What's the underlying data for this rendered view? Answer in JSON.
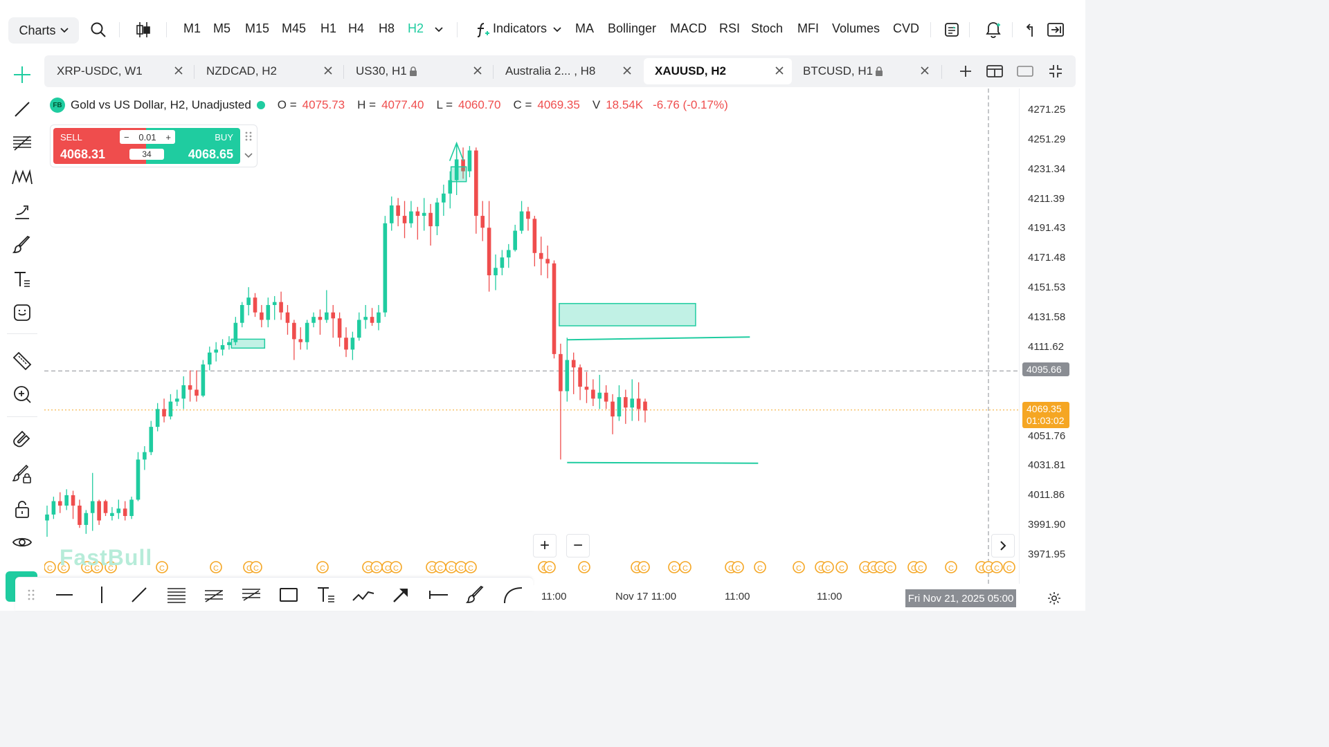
{
  "topbar": {
    "charts_label": "Charts",
    "timeframes": [
      "M1",
      "M5",
      "M15",
      "M45",
      "H1",
      "H4",
      "H8",
      "H2"
    ],
    "active_timeframe": "H2",
    "indicators_label": "Indicators",
    "indicator_shortcuts": [
      "MA",
      "Bollinger",
      "MACD",
      "RSI",
      "Stoch",
      "MFI",
      "Volumes",
      "CVD"
    ]
  },
  "tabs": [
    {
      "label": "XRP-USDC, W1",
      "locked": false,
      "active": false
    },
    {
      "label": "NZDCAD, H2",
      "locked": false,
      "active": false
    },
    {
      "label": "US30, H1",
      "locked": true,
      "active": false
    },
    {
      "label": "Australia 2... , H8",
      "locked": false,
      "active": false
    },
    {
      "label": "XAUUSD, H2",
      "locked": false,
      "active": true
    },
    {
      "label": "BTCUSD, H1",
      "locked": true,
      "active": false
    }
  ],
  "legend": {
    "badge": "FB",
    "title": "Gold vs US Dollar, H2, Unadjusted",
    "o_label": "O =",
    "o_value": "4075.73",
    "h_label": "H =",
    "h_value": "4077.40",
    "l_label": "L =",
    "l_value": "4060.70",
    "c_label": "C =",
    "c_value": "4069.35",
    "v_label": "V",
    "v_value": "18.54K",
    "change": "-6.76 (-0.17%)"
  },
  "trade": {
    "sell_label": "SELL",
    "sell_price": "4068.31",
    "buy_label": "BUY",
    "buy_price": "4068.65",
    "lot": "0.01",
    "spread": "34"
  },
  "price_axis": {
    "labels": [
      "4271.25",
      "4251.29",
      "4231.34",
      "4211.39",
      "4191.43",
      "4171.48",
      "4151.53",
      "4131.58",
      "4111.62",
      "4051.76",
      "4031.81",
      "4011.86",
      "3991.90",
      "3971.95"
    ],
    "crosshair_price": "4095.66",
    "last_price": "4069.35",
    "countdown": "01:03:02"
  },
  "time_axis": {
    "labels": [
      "11:00",
      "Nov 17 11:00",
      "11:00",
      "11:00"
    ],
    "cursor_time": "Fri Nov 21, 2025 05:00"
  },
  "watermark": "FastBull",
  "colors": {
    "up": "#1fcca0",
    "down": "#ef4d4d",
    "accent": "#1fcca0",
    "last_price": "#f5a623"
  },
  "chart_data": {
    "type": "candlestick",
    "symbol": "XAUUSD",
    "timeframe": "H2",
    "ylim": [
      3965,
      4280
    ],
    "candles": [
      [
        3995,
        4005,
        3984,
        3999
      ],
      [
        3999,
        4011,
        3996,
        4008
      ],
      [
        4008,
        4014,
        4000,
        4005
      ],
      [
        4005,
        4016,
        4002,
        4012
      ],
      [
        4012,
        4015,
        3996,
        4005
      ],
      [
        4005,
        4009,
        3990,
        3992
      ],
      [
        3992,
        4002,
        3986,
        4000
      ],
      [
        4000,
        4027,
        3988,
        4008
      ],
      [
        4008,
        4009,
        3992,
        3995
      ],
      [
        4008,
        4009,
        3998,
        4000
      ],
      [
        3998,
        4004,
        3995,
        4000
      ],
      [
        4000,
        4009,
        3996,
        4003
      ],
      [
        4003,
        4008,
        3995,
        3998
      ],
      [
        3998,
        4011,
        3996,
        4009
      ],
      [
        4009,
        4041,
        4008,
        4036
      ],
      [
        4036,
        4045,
        4029,
        4041
      ],
      [
        4041,
        4062,
        4039,
        4058
      ],
      [
        4058,
        4074,
        4055,
        4070
      ],
      [
        4070,
        4077,
        4061,
        4065
      ],
      [
        4065,
        4080,
        4063,
        4075
      ],
      [
        4075,
        4083,
        4072,
        4077
      ],
      [
        4077,
        4092,
        4070,
        4086
      ],
      [
        4086,
        4096,
        4075,
        4083
      ],
      [
        4083,
        4096,
        4075,
        4079
      ],
      [
        4079,
        4103,
        4078,
        4100
      ],
      [
        4100,
        4112,
        4096,
        4108
      ],
      [
        4108,
        4115,
        4102,
        4110
      ],
      [
        4110,
        4117,
        4106,
        4113
      ],
      [
        4113,
        4119,
        4110,
        4115
      ],
      [
        4115,
        4132,
        4113,
        4128
      ],
      [
        4128,
        4142,
        4125,
        4140
      ],
      [
        4140,
        4152,
        4133,
        4145
      ],
      [
        4145,
        4148,
        4132,
        4135
      ],
      [
        4135,
        4140,
        4125,
        4130
      ],
      [
        4130,
        4145,
        4125,
        4140
      ],
      [
        4140,
        4146,
        4130,
        4142
      ],
      [
        4142,
        4149,
        4130,
        4135
      ],
      [
        4135,
        4140,
        4120,
        4128
      ],
      [
        4128,
        4130,
        4103,
        4117
      ],
      [
        4117,
        4125,
        4110,
        4115
      ],
      [
        4115,
        4130,
        4110,
        4128
      ],
      [
        4128,
        4135,
        4125,
        4132
      ],
      [
        4132,
        4137,
        4120,
        4130
      ],
      [
        4130,
        4150,
        4128,
        4135
      ],
      [
        4135,
        4140,
        4118,
        4131
      ],
      [
        4131,
        4135,
        4112,
        4118
      ],
      [
        4118,
        4125,
        4105,
        4110
      ],
      [
        4110,
        4122,
        4103,
        4118
      ],
      [
        4118,
        4135,
        4116,
        4130
      ],
      [
        4130,
        4140,
        4124,
        4132
      ],
      [
        4132,
        4138,
        4126,
        4128
      ],
      [
        4128,
        4140,
        4123,
        4135
      ],
      [
        4135,
        4200,
        4132,
        4195
      ],
      [
        4195,
        4213,
        4190,
        4207
      ],
      [
        4207,
        4212,
        4193,
        4200
      ],
      [
        4200,
        4210,
        4185,
        4195
      ],
      [
        4195,
        4210,
        4192,
        4203
      ],
      [
        4203,
        4206,
        4184,
        4200
      ],
      [
        4200,
        4212,
        4190,
        4202
      ],
      [
        4202,
        4208,
        4180,
        4193
      ],
      [
        4193,
        4212,
        4187,
        4209
      ],
      [
        4209,
        4221,
        4200,
        4215
      ],
      [
        4215,
        4230,
        4205,
        4224
      ],
      [
        4224,
        4247,
        4214,
        4238
      ],
      [
        4238,
        4246,
        4225,
        4230
      ],
      [
        4230,
        4247,
        4226,
        4244
      ],
      [
        4244,
        4246,
        4188,
        4200
      ],
      [
        4200,
        4210,
        4183,
        4192
      ],
      [
        4192,
        4210,
        4149,
        4160
      ],
      [
        4160,
        4174,
        4150,
        4165
      ],
      [
        4165,
        4177,
        4160,
        4172
      ],
      [
        4172,
        4181,
        4165,
        4177
      ],
      [
        4177,
        4194,
        4176,
        4190
      ],
      [
        4190,
        4210,
        4188,
        4203
      ],
      [
        4203,
        4206,
        4190,
        4198
      ],
      [
        4198,
        4200,
        4166,
        4175
      ],
      [
        4175,
        4186,
        4160,
        4171
      ],
      [
        4171,
        4180,
        4158,
        4168
      ],
      [
        4168,
        4170,
        4104,
        4107
      ],
      [
        4107,
        4114,
        4036,
        4082
      ],
      [
        4082,
        4118,
        4075,
        4103
      ],
      [
        4103,
        4108,
        4080,
        4098
      ],
      [
        4098,
        4100,
        4076,
        4085
      ],
      [
        4085,
        4095,
        4074,
        4083
      ],
      [
        4083,
        4090,
        4072,
        4077
      ],
      [
        4077,
        4093,
        4070,
        4081
      ],
      [
        4081,
        4086,
        4070,
        4075
      ],
      [
        4075,
        4080,
        4053,
        4065
      ],
      [
        4065,
        4086,
        4062,
        4078
      ],
      [
        4078,
        4083,
        4060,
        4071
      ],
      [
        4071,
        4090,
        4062,
        4077
      ],
      [
        4077,
        4088,
        4062,
        4070
      ],
      [
        4075,
        4077,
        4061,
        4069
      ]
    ],
    "zones": [
      {
        "type": "demand-box",
        "price_top": 4141,
        "price_bottom": 4126
      },
      {
        "type": "line",
        "price": 4118
      },
      {
        "type": "line",
        "price": 4034
      },
      {
        "type": "small-box",
        "price_top": 4117,
        "price_bottom": 4111
      },
      {
        "type": "small-box",
        "price_top": 4233,
        "price_bottom": 4223
      }
    ],
    "crosshair_price": 4095.66,
    "last_price": 4069.35
  }
}
